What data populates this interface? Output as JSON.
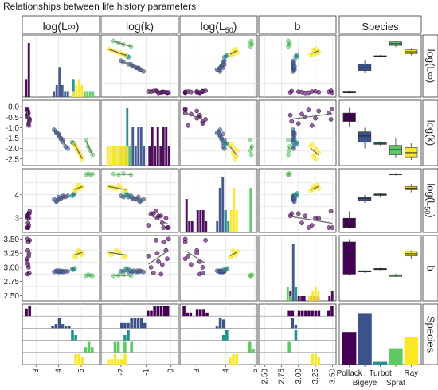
{
  "title": "Relationships between life history parameters",
  "colors": {
    "Pollack": "#440154",
    "Bigeye": "#3b528b",
    "Turbot": "#21918c",
    "Sprat": "#5ec962",
    "Ray": "#fde725",
    "panel_bg": "#ffffff",
    "grid": "#dddddd",
    "strip_bg": "#ffffff",
    "border": "#333333",
    "fit_line": "#666666"
  },
  "chart_data": {
    "type": "scatter",
    "layout": "pairs-matrix",
    "variables": [
      "log(L∞)",
      "log(k)",
      "log(L50)",
      "b",
      "Species"
    ],
    "species": [
      "Pollack",
      "Bigeye",
      "Turbot",
      "Sprat",
      "Ray"
    ],
    "species_tick_labels": [
      "Pollack",
      "Bigeye",
      "Turbot",
      "Sprat",
      "Ray"
    ],
    "ranges": {
      "logLinf": [
        2.5,
        5.7
      ],
      "logk": [
        -2.7,
        0.2
      ],
      "logL50": [
        2.5,
        5.0
      ],
      "b": [
        2.45,
        3.52
      ]
    },
    "x_ticks": {
      "logLinf": [
        3,
        4,
        5
      ],
      "logk": [
        -2,
        -1,
        0
      ],
      "logL50": [
        3,
        4,
        5
      ],
      "b": [
        2.5,
        2.75,
        3.0,
        3.25,
        3.5
      ]
    },
    "x_tick_labels": {
      "logLinf": [
        "3",
        "4",
        "5"
      ],
      "logk": [
        "-2",
        "-1",
        "0"
      ],
      "logL50": [
        "3",
        "4",
        "5"
      ],
      "b": [
        "2.50",
        "2.75",
        "3.00",
        "3.25",
        "3.50"
      ]
    },
    "y_ticks": {
      "logk": [
        0.0,
        -0.5,
        -1.0,
        -1.5,
        -2.0,
        -2.5
      ],
      "logL50": [
        3,
        4
      ],
      "b": [
        2.5,
        2.75,
        3.0,
        3.25,
        3.5
      ]
    },
    "y_tick_labels": {
      "logk": [
        "0.0",
        "-0.5",
        "-1.0",
        "-1.5",
        "-2.0",
        "-2.5"
      ],
      "logL50": [
        "3",
        "4"
      ],
      "b": [
        "2.50",
        "2.75",
        "3.00",
        "3.25",
        "3.50"
      ]
    },
    "points": {
      "Pollack": {
        "logLinf": [
          2.62,
          2.66,
          2.6,
          2.7,
          2.64,
          2.68,
          2.63,
          2.72,
          2.61,
          2.67,
          2.65,
          2.69
        ],
        "logk": [
          -0.1,
          -0.3,
          -0.5,
          -0.7,
          -0.2,
          -0.9,
          -0.4,
          -0.6,
          -0.15,
          -0.8,
          -0.35,
          -0.55
        ],
        "logL50": [
          2.6,
          2.6,
          3.1,
          3.2,
          3.0,
          2.7,
          3.1,
          3.3,
          2.6,
          3.2,
          2.8,
          3.0
        ],
        "b": [
          3.5,
          3.45,
          3.1,
          2.9,
          3.3,
          3.2,
          2.88,
          3.48,
          3.15,
          3.0,
          3.05,
          3.25
        ]
      },
      "Bigeye": {
        "logLinf": [
          3.8,
          3.9,
          4.0,
          4.1,
          4.2,
          4.0,
          4.3,
          3.9,
          4.1,
          4.4,
          4.0,
          4.2
        ],
        "logk": [
          -1.1,
          -1.2,
          -1.3,
          -1.5,
          -1.6,
          -1.4,
          -1.9,
          -1.25,
          -1.55,
          -2.0,
          -1.35,
          -1.7
        ],
        "logL50": [
          3.8,
          3.75,
          3.9,
          3.85,
          3.95,
          3.8,
          3.9,
          3.7,
          3.85,
          3.95,
          3.8,
          3.9
        ],
        "b": [
          2.92,
          2.93,
          2.92,
          2.94,
          2.93,
          2.92,
          2.93,
          2.94,
          2.92,
          2.93,
          2.94,
          2.92
        ]
      },
      "Turbot": {
        "logLinf": [
          4.6,
          4.65,
          4.7
        ],
        "logk": [
          -1.7,
          -1.75,
          -1.8
        ],
        "logL50": [
          3.95,
          4.0,
          4.05
        ],
        "b": [
          2.97,
          2.96,
          2.98
        ]
      },
      "Sprat": {
        "logLinf": [
          5.2,
          5.3,
          5.4,
          5.5
        ],
        "logk": [
          -1.6,
          -1.9,
          -2.1,
          -2.3
        ],
        "logL50": [
          4.85,
          4.9,
          4.85,
          4.88
        ],
        "b": [
          2.85,
          2.87,
          2.86,
          2.85
        ]
      },
      "Ray": {
        "logLinf": [
          4.7,
          4.8,
          4.9,
          5.0,
          4.75,
          4.85,
          4.95,
          5.05
        ],
        "logk": [
          -1.8,
          -2.0,
          -2.2,
          -2.4,
          -1.9,
          -2.1,
          -2.3,
          -2.5
        ],
        "logL50": [
          4.2,
          4.3,
          4.25,
          4.35,
          4.15,
          4.4,
          4.28,
          4.32
        ],
        "b": [
          3.2,
          3.25,
          3.3,
          3.22,
          3.18,
          3.28,
          3.24,
          3.26
        ]
      }
    },
    "boxplots": {
      "logLinf": {
        "Pollack": [
          2.58,
          2.6,
          2.65,
          2.7,
          2.74
        ],
        "Bigeye": [
          3.7,
          3.85,
          4.0,
          4.2,
          4.4
        ],
        "Turbot": [
          4.58,
          4.62,
          4.65,
          4.68,
          4.72
        ],
        "Sprat": [
          5.15,
          5.25,
          5.35,
          5.45,
          5.52
        ],
        "Ray": [
          4.7,
          4.8,
          4.9,
          5.0,
          5.1
        ]
      },
      "logk": {
        "Pollack": [
          -0.05,
          -0.3,
          -0.5,
          -0.7,
          -0.95
        ],
        "Bigeye": [
          -1.0,
          -1.2,
          -1.4,
          -1.7,
          -2.0
        ],
        "Turbot": [
          -1.65,
          -1.7,
          -1.75,
          -1.8,
          -1.85
        ],
        "Sprat": [
          -1.5,
          -1.85,
          -2.05,
          -2.3,
          -2.45
        ],
        "Ray": [
          -1.75,
          -1.95,
          -2.2,
          -2.4,
          -2.55
        ]
      },
      "logL50": {
        "Pollack": [
          2.55,
          2.6,
          2.7,
          3.0,
          3.3
        ],
        "Bigeye": [
          3.65,
          3.75,
          3.85,
          3.9,
          4.0
        ],
        "Turbot": [
          3.92,
          3.97,
          4.0,
          4.03,
          4.08
        ],
        "Sprat": [
          4.82,
          4.85,
          4.87,
          4.89,
          4.92
        ],
        "Ray": [
          4.1,
          4.2,
          4.28,
          4.35,
          4.45
        ]
      },
      "b": {
        "Pollack": [
          2.85,
          2.88,
          3.2,
          3.45,
          3.5
        ],
        "Bigeye": [
          2.9,
          2.92,
          2.93,
          2.94,
          2.95
        ],
        "Turbot": [
          2.95,
          2.96,
          2.97,
          2.98,
          2.99
        ],
        "Sprat": [
          2.83,
          2.84,
          2.86,
          2.87,
          2.89
        ],
        "Ray": [
          3.15,
          3.2,
          3.24,
          3.28,
          3.3
        ]
      }
    },
    "species_counts": {
      "Pollack": 0.6,
      "Bigeye": 0.95,
      "Turbot": 0.05,
      "Sprat": 0.3,
      "Ray": 0.5
    }
  }
}
